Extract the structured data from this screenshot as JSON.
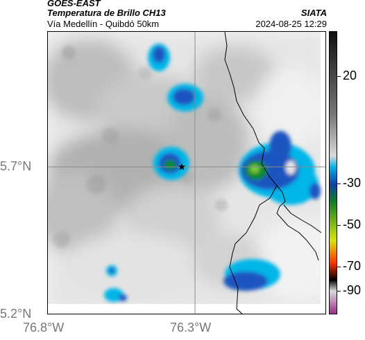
{
  "header": {
    "source": "GOES-EAST",
    "product": "Temperatura de Brillo CH13",
    "route": "Vía Medellín - Quibdó 50km",
    "brand": "SIATA",
    "timestamp": "2024-08-25 12:29"
  },
  "axes": {
    "lat_labels": [
      "5.7°N",
      "5.2°N"
    ],
    "lon_labels": [
      "76.8°W",
      "76.3°W"
    ]
  },
  "colorbar": {
    "ticks": [
      "20",
      "-30",
      "-50",
      "-70",
      "-90"
    ],
    "colors": [
      "#111111",
      "#7a7a7a",
      "#d9d9d9",
      "#00b3e6",
      "#1040a0",
      "#0b7a2b",
      "#d7e600",
      "#ff3300",
      "#000000",
      "#d9d9d9",
      "#a02c8c"
    ]
  },
  "map": {
    "marker_icon": "star-icon",
    "colors": {
      "cloud_top": "#1f4fb5",
      "cold_core": "#0a8a2a",
      "edge": "#2ec4e6",
      "border": "#000000"
    }
  }
}
